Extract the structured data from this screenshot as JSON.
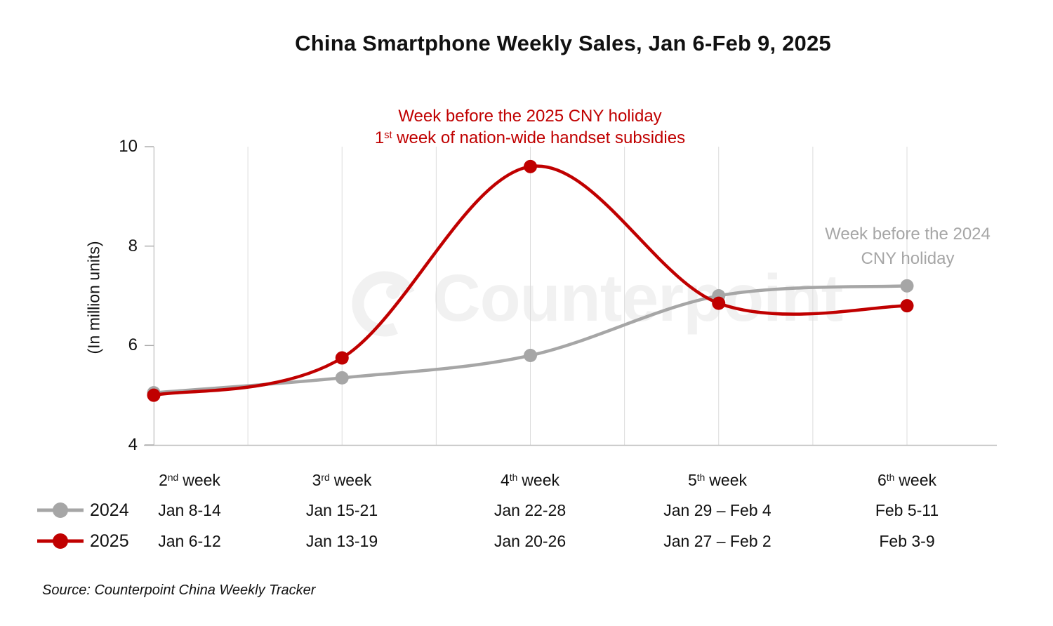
{
  "title": "China Smartphone Weekly Sales, Jan 6-Feb 9, 2025",
  "annotations": {
    "red_line1": "Week before the 2025 CNY holiday",
    "red_line2_num": "1",
    "red_line2_sup": "st",
    "red_line2_rest": " week of nation-wide handset subsidies",
    "gray_line1": "Week before the 2024",
    "gray_line2": "CNY holiday"
  },
  "y_axis": {
    "title": "(In million units)",
    "ticks": [
      "10",
      "8",
      "6",
      "4"
    ]
  },
  "legend": {
    "items": [
      {
        "label": "2024",
        "color": "#A6A6A6"
      },
      {
        "label": "2025",
        "color": "#C00000"
      }
    ]
  },
  "table": {
    "columns": [
      {
        "week_num": "2",
        "week_suffix": "nd",
        "week_word": "week",
        "dates_2024": "Jan 8-14",
        "dates_2025": "Jan 6-12"
      },
      {
        "week_num": "3",
        "week_suffix": "rd",
        "week_word": "week",
        "dates_2024": "Jan 15-21",
        "dates_2025": "Jan 13-19"
      },
      {
        "week_num": "4",
        "week_suffix": "th",
        "week_word": "week",
        "dates_2024": "Jan 22-28",
        "dates_2025": "Jan 20-26"
      },
      {
        "week_num": "5",
        "week_suffix": "th",
        "week_word": "week",
        "dates_2024": "Jan 29 – Feb 4",
        "dates_2025": "Jan 27 – Feb 2"
      },
      {
        "week_num": "6",
        "week_suffix": "th",
        "week_word": "week",
        "dates_2024": "Feb 5-11",
        "dates_2025": "Feb 3-9"
      }
    ]
  },
  "source": "Source: Counterpoint China Weekly Tracker",
  "watermark_text": "Counterpoint",
  "colors": {
    "red": "#C00000",
    "gray": "#A6A6A6",
    "gridline": "#DCDCDC",
    "axis": "#BFBFBF",
    "tick": "#A9A9A9",
    "watermark": "#F1F1F1"
  },
  "chart_data": {
    "type": "line",
    "title": "China Smartphone Weekly Sales, Jan 6-Feb 9, 2025",
    "categories": [
      "2nd week",
      "3rd week",
      "4th week",
      "5th week",
      "6th week"
    ],
    "series": [
      {
        "name": "2024",
        "color": "#A6A6A6",
        "week_dates": [
          "Jan 8-14",
          "Jan 15-21",
          "Jan 22-28",
          "Jan 29 – Feb 4",
          "Feb 5-11"
        ],
        "values": [
          5.05,
          5.35,
          5.8,
          7.0,
          7.2
        ]
      },
      {
        "name": "2025",
        "color": "#C00000",
        "week_dates": [
          "Jan 6-12",
          "Jan 13-19",
          "Jan 20-26",
          "Jan 27 – Feb 2",
          "Feb 3-9"
        ],
        "values": [
          5.0,
          5.75,
          9.6,
          6.85,
          6.8
        ]
      }
    ],
    "xlabel": "",
    "ylabel": "(In million units)",
    "ylim": [
      4,
      10
    ],
    "yticks": [
      4,
      6,
      8,
      10
    ],
    "grid": "vertical-light",
    "line_style": "smooth",
    "markers": "filled-circles",
    "legend_position": "bottom-left",
    "annotations": [
      {
        "text": "Week before the 2025 CNY holiday\n1st week of nation-wide handset subsidies",
        "color": "#C00000",
        "target": "2025 series peak, 4th week"
      },
      {
        "text": "Week before the 2024\nCNY holiday",
        "color": "#A6A6A6",
        "target": "2024 series end, 6th week"
      }
    ],
    "source": "Source: Counterpoint China Weekly Tracker"
  }
}
